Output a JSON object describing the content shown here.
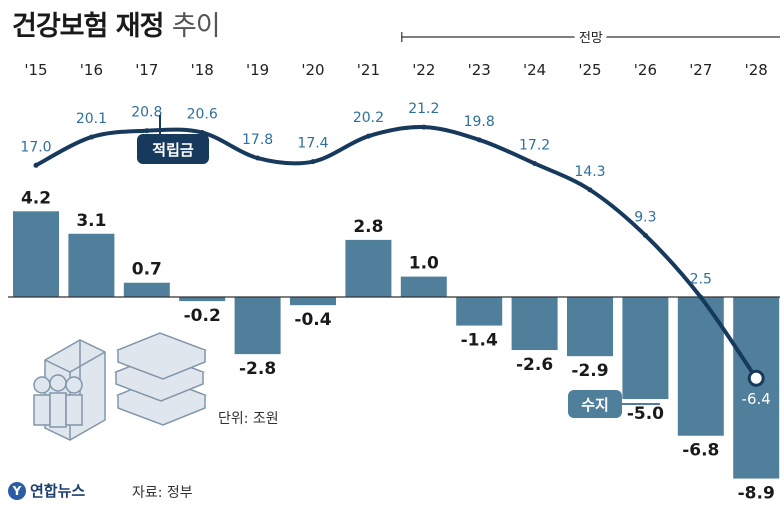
{
  "title": {
    "main": "건강보험 재정",
    "sub": "추이"
  },
  "forecast_label": "전망",
  "unit_label": "단위: 조원",
  "source_label": "자료: 정부",
  "logo_text": "연합뉴스",
  "colors": {
    "bar": "#4f7f9b",
    "line": "#173a5c",
    "label_blue": "#2f6f9e",
    "axis": "#333333"
  },
  "chart_data": {
    "type": "bar+line",
    "categories": [
      "'15",
      "'16",
      "'17",
      "'18",
      "'19",
      "'20",
      "'21",
      "'22",
      "'23",
      "'24",
      "'25",
      "'26",
      "'27",
      "'28"
    ],
    "series": [
      {
        "name": "수지",
        "type": "bar",
        "values": [
          4.2,
          3.1,
          0.7,
          -0.2,
          -2.8,
          -0.4,
          2.8,
          1.0,
          -1.4,
          -2.6,
          -2.9,
          -5.0,
          -6.8,
          -8.9
        ]
      },
      {
        "name": "적립금",
        "type": "line",
        "values": [
          17.0,
          20.1,
          20.8,
          20.6,
          17.8,
          17.4,
          20.2,
          21.2,
          19.8,
          17.2,
          14.3,
          9.3,
          2.5,
          -6.4
        ]
      }
    ],
    "bar_labels": [
      "4.2",
      "3.1",
      "0.7",
      "-0.2",
      "-2.8",
      "-0.4",
      "2.8",
      "1.0",
      "-1.4",
      "-2.6",
      "-2.9",
      "-5.0",
      "-6.8",
      "-8.9"
    ],
    "line_labels": [
      "17.0",
      "20.1",
      "20.8",
      "20.6",
      "17.8",
      "17.4",
      "20.2",
      "21.2",
      "19.8",
      "17.2",
      "14.3",
      "9.3",
      "2.5",
      "-6.4"
    ],
    "forecast_start": "'22",
    "callouts": {
      "line": "적립금",
      "bar": "수지"
    }
  }
}
